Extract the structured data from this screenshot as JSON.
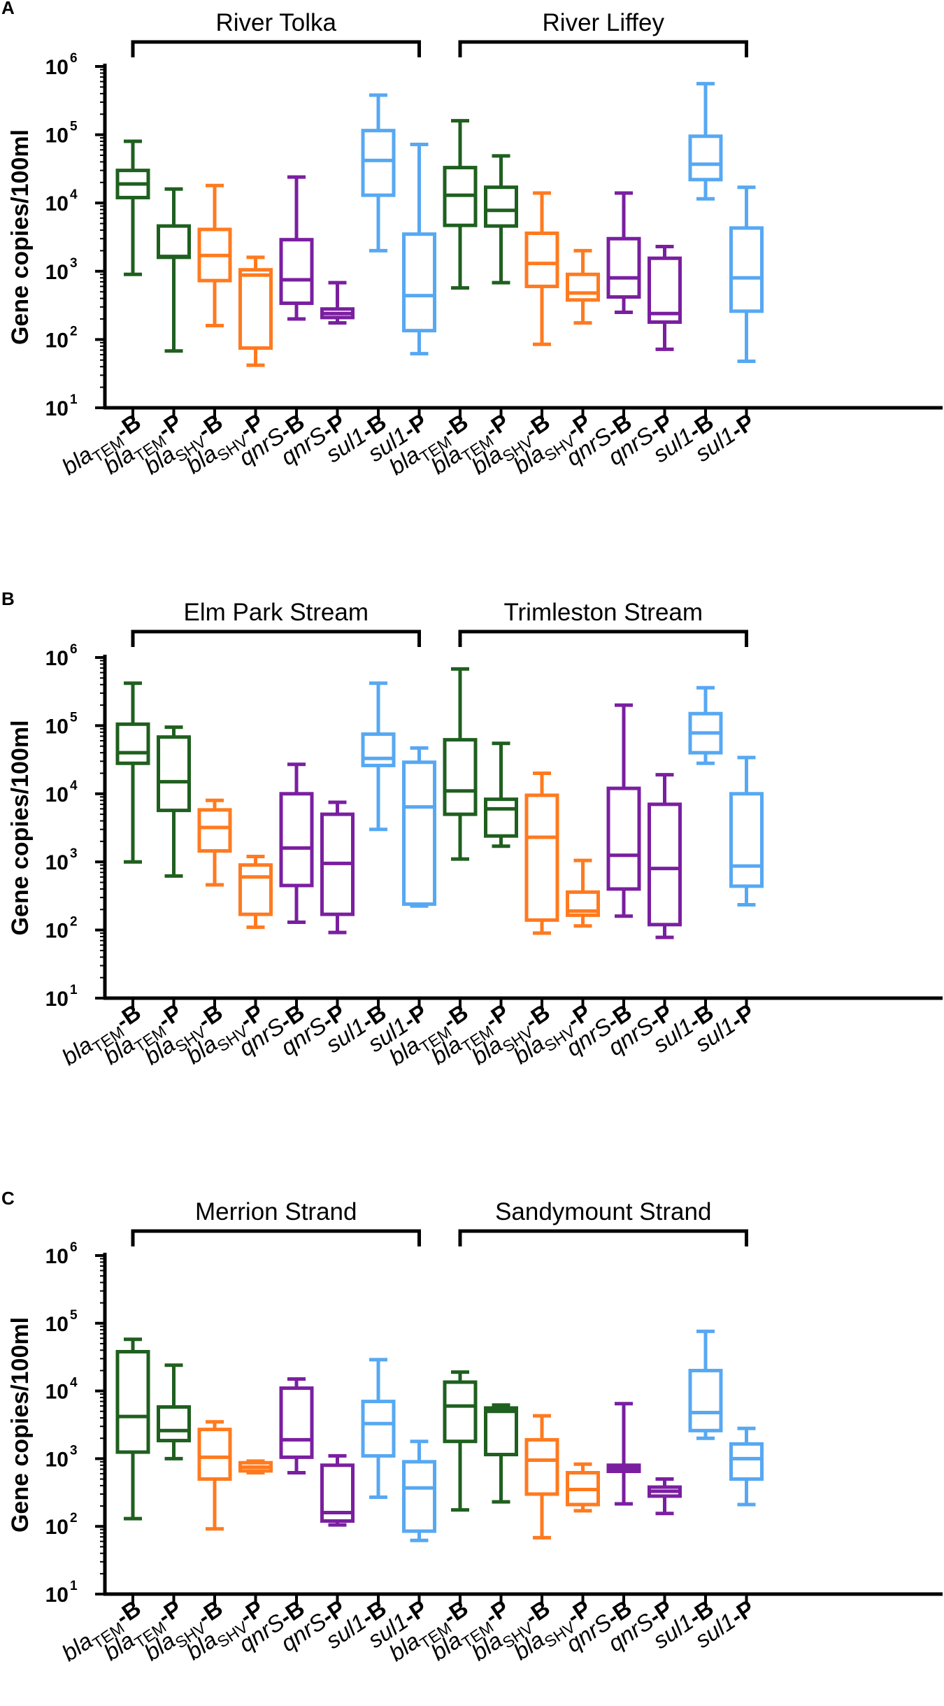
{
  "colors": {
    "tem": "#1f5f1f",
    "shv": "#ff7a1f",
    "qnr": "#7a1fa0",
    "sul": "#57a8f2",
    "axis": "#000000"
  },
  "chart_data": [
    {
      "type": "box",
      "panel_label": "A",
      "ylabel": "Gene copies/100ml",
      "yscale": "log",
      "ylim": [
        10,
        1000000
      ],
      "yticks": [
        {
          "base": "10",
          "exp": "1"
        },
        {
          "base": "10",
          "exp": "2"
        },
        {
          "base": "10",
          "exp": "3"
        },
        {
          "base": "10",
          "exp": "4"
        },
        {
          "base": "10",
          "exp": "5"
        },
        {
          "base": "10",
          "exp": "6"
        }
      ],
      "groups": [
        {
          "name": "River Tolka"
        },
        {
          "name": "River Liffey"
        }
      ],
      "categories": [
        {
          "pre": "bla",
          "sub": "TEM",
          "suf": "-B"
        },
        {
          "pre": "bla",
          "sub": "TEM",
          "suf": "-P"
        },
        {
          "pre": "bla",
          "sub": "SHV",
          "suf": "-B"
        },
        {
          "pre": "bla",
          "sub": "SHV",
          "suf": "-P"
        },
        {
          "pre": "qnrS",
          "sub": "",
          "suf": "-B"
        },
        {
          "pre": "qnrS",
          "sub": "",
          "suf": "-P"
        },
        {
          "pre": "sul1",
          "sub": "",
          "suf": "-B"
        },
        {
          "pre": "sul1",
          "sub": "",
          "suf": "-P"
        },
        {
          "pre": "bla",
          "sub": "TEM",
          "suf": "-B"
        },
        {
          "pre": "bla",
          "sub": "TEM",
          "suf": "-P"
        },
        {
          "pre": "bla",
          "sub": "SHV",
          "suf": "-B"
        },
        {
          "pre": "bla",
          "sub": "SHV",
          "suf": "-P"
        },
        {
          "pre": "qnrS",
          "sub": "",
          "suf": "-B"
        },
        {
          "pre": "qnrS",
          "sub": "",
          "suf": "-P"
        },
        {
          "pre": "sul1",
          "sub": "",
          "suf": "-B"
        },
        {
          "pre": "sul1",
          "sub": "",
          "suf": "-P"
        }
      ],
      "boxes": [
        {
          "gene": "tem",
          "min": 900,
          "q1": 12000,
          "median": 19000,
          "q3": 30000,
          "max": 80000
        },
        {
          "gene": "tem",
          "min": 68,
          "q1": 1600,
          "median": 1650,
          "q3": 4600,
          "max": 16000
        },
        {
          "gene": "shv",
          "min": 160,
          "q1": 730,
          "median": 1700,
          "q3": 4100,
          "max": 18000
        },
        {
          "gene": "shv",
          "min": 42,
          "q1": 75,
          "median": 880,
          "q3": 1050,
          "max": 1600
        },
        {
          "gene": "qnr",
          "min": 200,
          "q1": 340,
          "median": 750,
          "q3": 2900,
          "max": 24000
        },
        {
          "gene": "qnr",
          "min": 175,
          "q1": 210,
          "median": 240,
          "q3": 280,
          "max": 680
        },
        {
          "gene": "sul",
          "min": 2000,
          "q1": 13000,
          "median": 42000,
          "q3": 115000,
          "max": 380000
        },
        {
          "gene": "sul",
          "min": 62,
          "q1": 135,
          "median": 440,
          "q3": 3500,
          "max": 72000
        },
        {
          "gene": "tem",
          "min": 570,
          "q1": 4700,
          "median": 13000,
          "q3": 33000,
          "max": 160000
        },
        {
          "gene": "tem",
          "min": 680,
          "q1": 4600,
          "median": 7800,
          "q3": 17000,
          "max": 49000
        },
        {
          "gene": "shv",
          "min": 85,
          "q1": 600,
          "median": 1300,
          "q3": 3600,
          "max": 14000
        },
        {
          "gene": "shv",
          "min": 175,
          "q1": 380,
          "median": 480,
          "q3": 900,
          "max": 2000
        },
        {
          "gene": "qnr",
          "min": 250,
          "q1": 420,
          "median": 800,
          "q3": 3000,
          "max": 14000
        },
        {
          "gene": "qnr",
          "min": 72,
          "q1": 180,
          "median": 240,
          "q3": 1550,
          "max": 2300
        },
        {
          "gene": "sul",
          "min": 11500,
          "q1": 22000,
          "median": 37000,
          "q3": 95000,
          "max": 560000
        },
        {
          "gene": "sul",
          "min": 48,
          "q1": 260,
          "median": 800,
          "q3": 4300,
          "max": 17000
        }
      ]
    },
    {
      "type": "box",
      "panel_label": "B",
      "ylabel": "Gene copies/100ml",
      "yscale": "log",
      "ylim": [
        10,
        1000000
      ],
      "yticks": [
        {
          "base": "10",
          "exp": "1"
        },
        {
          "base": "10",
          "exp": "2"
        },
        {
          "base": "10",
          "exp": "3"
        },
        {
          "base": "10",
          "exp": "4"
        },
        {
          "base": "10",
          "exp": "5"
        },
        {
          "base": "10",
          "exp": "6"
        }
      ],
      "groups": [
        {
          "name": "Elm Park Stream"
        },
        {
          "name": "Trimleston Stream"
        }
      ],
      "categories": [
        {
          "pre": "bla",
          "sub": "TEM",
          "suf": "-B"
        },
        {
          "pre": "bla",
          "sub": "TEM",
          "suf": "-P"
        },
        {
          "pre": "bla",
          "sub": "SHV",
          "suf": "-B"
        },
        {
          "pre": "bla",
          "sub": "SHV",
          "suf": "-P"
        },
        {
          "pre": "qnrS",
          "sub": "",
          "suf": "-B"
        },
        {
          "pre": "qnrS",
          "sub": "",
          "suf": "-P"
        },
        {
          "pre": "sul1",
          "sub": "",
          "suf": "-B"
        },
        {
          "pre": "sul1",
          "sub": "",
          "suf": "-P"
        },
        {
          "pre": "bla",
          "sub": "TEM",
          "suf": "-B"
        },
        {
          "pre": "bla",
          "sub": "TEM",
          "suf": "-P"
        },
        {
          "pre": "bla",
          "sub": "SHV",
          "suf": "-B"
        },
        {
          "pre": "bla",
          "sub": "SHV",
          "suf": "-P"
        },
        {
          "pre": "qnrS",
          "sub": "",
          "suf": "-B"
        },
        {
          "pre": "qnrS",
          "sub": "",
          "suf": "-P"
        },
        {
          "pre": "sul1",
          "sub": "",
          "suf": "-B"
        },
        {
          "pre": "sul1",
          "sub": "",
          "suf": "-P"
        }
      ],
      "boxes": [
        {
          "gene": "tem",
          "min": 1000,
          "q1": 28000,
          "median": 40000,
          "q3": 105000,
          "max": 420000
        },
        {
          "gene": "tem",
          "min": 620,
          "q1": 5700,
          "median": 15000,
          "q3": 68000,
          "max": 95000
        },
        {
          "gene": "shv",
          "min": 460,
          "q1": 1450,
          "median": 3200,
          "q3": 5800,
          "max": 8000
        },
        {
          "gene": "shv",
          "min": 110,
          "q1": 170,
          "median": 600,
          "q3": 900,
          "max": 1200
        },
        {
          "gene": "qnr",
          "min": 130,
          "q1": 450,
          "median": 1600,
          "q3": 10000,
          "max": 27000
        },
        {
          "gene": "qnr",
          "min": 92,
          "q1": 170,
          "median": 950,
          "q3": 5000,
          "max": 7500
        },
        {
          "gene": "sul",
          "min": 3000,
          "q1": 26000,
          "median": 33000,
          "q3": 75000,
          "max": 420000
        },
        {
          "gene": "sul",
          "min": 225,
          "q1": 240,
          "median": 6400,
          "q3": 29000,
          "max": 47000
        },
        {
          "gene": "tem",
          "min": 1100,
          "q1": 5000,
          "median": 11000,
          "q3": 62000,
          "max": 680000
        },
        {
          "gene": "tem",
          "min": 1700,
          "q1": 2400,
          "median": 6000,
          "q3": 8300,
          "max": 55000
        },
        {
          "gene": "shv",
          "min": 90,
          "q1": 140,
          "median": 2300,
          "q3": 9500,
          "max": 20000
        },
        {
          "gene": "shv",
          "min": 115,
          "q1": 165,
          "median": 190,
          "q3": 360,
          "max": 1050
        },
        {
          "gene": "qnr",
          "min": 160,
          "q1": 400,
          "median": 1250,
          "q3": 12000,
          "max": 200000
        },
        {
          "gene": "qnr",
          "min": 78,
          "q1": 120,
          "median": 800,
          "q3": 7000,
          "max": 19000
        },
        {
          "gene": "sul",
          "min": 28000,
          "q1": 40000,
          "median": 78000,
          "q3": 150000,
          "max": 360000
        },
        {
          "gene": "sul",
          "min": 235,
          "q1": 440,
          "median": 870,
          "q3": 10000,
          "max": 34000
        }
      ]
    },
    {
      "type": "box",
      "panel_label": "C",
      "ylabel": "Gene copies/100ml",
      "yscale": "log",
      "ylim": [
        10,
        1000000
      ],
      "yticks": [
        {
          "base": "10",
          "exp": "1"
        },
        {
          "base": "10",
          "exp": "2"
        },
        {
          "base": "10",
          "exp": "3"
        },
        {
          "base": "10",
          "exp": "4"
        },
        {
          "base": "10",
          "exp": "5"
        },
        {
          "base": "10",
          "exp": "6"
        }
      ],
      "groups": [
        {
          "name": "Merrion Strand"
        },
        {
          "name": "Sandymount Strand"
        }
      ],
      "categories": [
        {
          "pre": "bla",
          "sub": "TEM",
          "suf": "-B"
        },
        {
          "pre": "bla",
          "sub": "TEM",
          "suf": "-P"
        },
        {
          "pre": "bla",
          "sub": "SHV",
          "suf": "-B"
        },
        {
          "pre": "bla",
          "sub": "SHV",
          "suf": "-P"
        },
        {
          "pre": "qnrS",
          "sub": "",
          "suf": "-B"
        },
        {
          "pre": "qnrS",
          "sub": "",
          "suf": "-P"
        },
        {
          "pre": "sul1",
          "sub": "",
          "suf": "-B"
        },
        {
          "pre": "sul1",
          "sub": "",
          "suf": "-P"
        },
        {
          "pre": "bla",
          "sub": "TEM",
          "suf": "-B"
        },
        {
          "pre": "bla",
          "sub": "TEM",
          "suf": "-P"
        },
        {
          "pre": "bla",
          "sub": "SHV",
          "suf": "-B"
        },
        {
          "pre": "bla",
          "sub": "SHV",
          "suf": "-P"
        },
        {
          "pre": "qnrS",
          "sub": "",
          "suf": "-B"
        },
        {
          "pre": "qnrS",
          "sub": "",
          "suf": "-P"
        },
        {
          "pre": "sul1",
          "sub": "",
          "suf": "-B"
        },
        {
          "pre": "sul1",
          "sub": "",
          "suf": "-P"
        }
      ],
      "boxes": [
        {
          "gene": "tem",
          "min": 130,
          "q1": 1250,
          "median": 4200,
          "q3": 38000,
          "max": 58000
        },
        {
          "gene": "tem",
          "min": 1000,
          "q1": 1850,
          "median": 2600,
          "q3": 5800,
          "max": 24000
        },
        {
          "gene": "shv",
          "min": 92,
          "q1": 500,
          "median": 1050,
          "q3": 2700,
          "max": 3500
        },
        {
          "gene": "shv",
          "min": 620,
          "q1": 660,
          "median": 750,
          "q3": 870,
          "max": 920
        },
        {
          "gene": "qnr",
          "min": 620,
          "q1": 1050,
          "median": 1900,
          "q3": 11000,
          "max": 15000
        },
        {
          "gene": "qnr",
          "min": 105,
          "q1": 120,
          "median": 160,
          "q3": 800,
          "max": 1100
        },
        {
          "gene": "sul",
          "min": 270,
          "q1": 1100,
          "median": 3300,
          "q3": 7000,
          "max": 29000
        },
        {
          "gene": "sul",
          "min": 62,
          "q1": 85,
          "median": 370,
          "q3": 900,
          "max": 1800
        },
        {
          "gene": "tem",
          "min": 175,
          "q1": 1800,
          "median": 6000,
          "q3": 13500,
          "max": 19000
        },
        {
          "gene": "tem",
          "min": 230,
          "q1": 1150,
          "median": 5000,
          "q3": 5600,
          "max": 6200
        },
        {
          "gene": "shv",
          "min": 68,
          "q1": 300,
          "median": 950,
          "q3": 1900,
          "max": 4300
        },
        {
          "gene": "shv",
          "min": 170,
          "q1": 210,
          "median": 350,
          "q3": 620,
          "max": 830
        },
        {
          "gene": "qnr",
          "min": 215,
          "q1": 650,
          "median": 720,
          "q3": 800,
          "max": 6500
        },
        {
          "gene": "qnr",
          "min": 155,
          "q1": 280,
          "median": 330,
          "q3": 380,
          "max": 500
        },
        {
          "gene": "sul",
          "min": 2000,
          "q1": 2600,
          "median": 4800,
          "q3": 20000,
          "max": 76000
        },
        {
          "gene": "sul",
          "min": 210,
          "q1": 500,
          "median": 1000,
          "q3": 1650,
          "max": 2800
        }
      ]
    }
  ]
}
